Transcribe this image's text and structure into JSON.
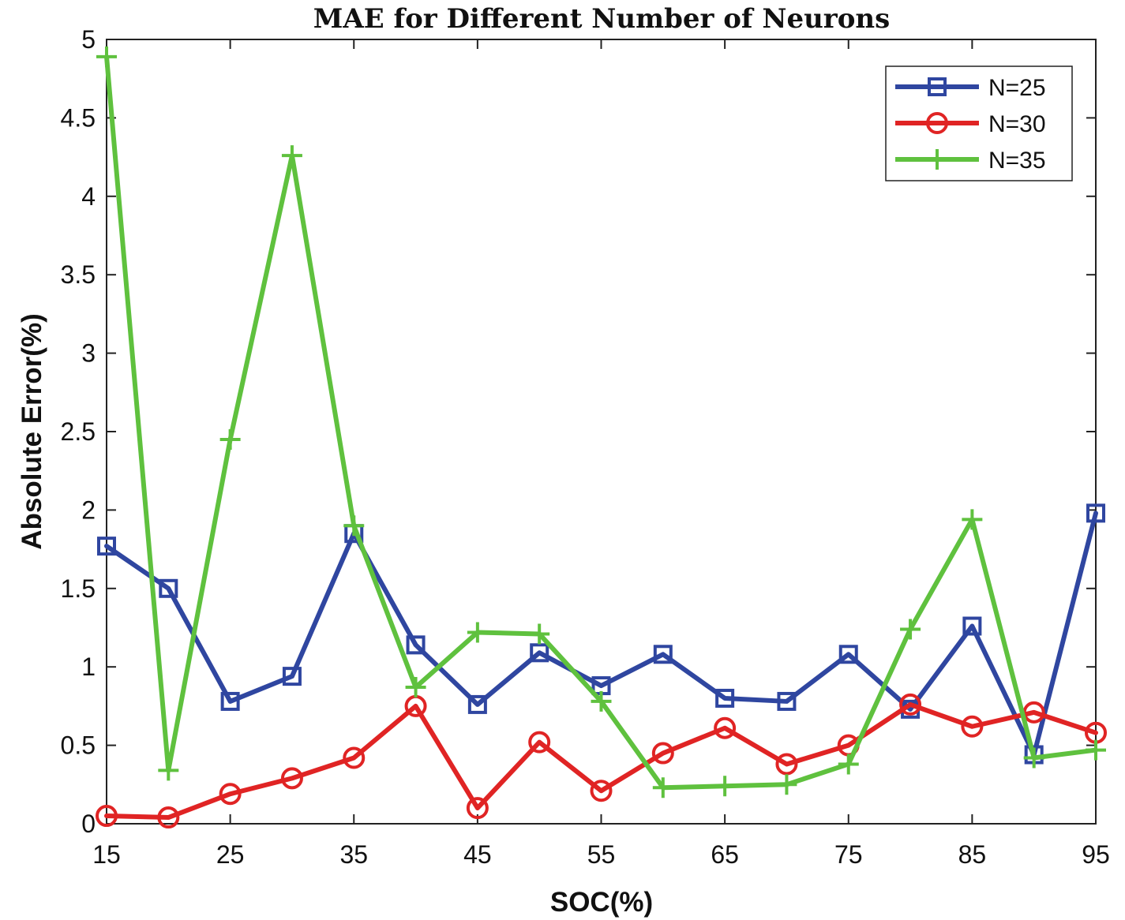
{
  "chart_data": {
    "type": "line",
    "title": "MAE for Different Number of Neurons",
    "xlabel": "SOC(%)",
    "ylabel": "Absolute Error(%)",
    "xlim": [
      15,
      95
    ],
    "ylim": [
      0,
      5
    ],
    "x": [
      15,
      20,
      25,
      30,
      35,
      40,
      45,
      50,
      55,
      60,
      65,
      70,
      75,
      80,
      85,
      90,
      95
    ],
    "x_ticks": [
      "15",
      "25",
      "35",
      "45",
      "55",
      "65",
      "75",
      "85",
      "95"
    ],
    "y_ticks": [
      "0",
      "0.5",
      "1",
      "1.5",
      "2",
      "2.5",
      "3",
      "3.5",
      "4",
      "4.5",
      "5"
    ],
    "grid": false,
    "legend_position": "top-right",
    "series": [
      {
        "name": "N=25",
        "color": "#2f46a0",
        "marker": "square",
        "values": [
          1.77,
          1.5,
          0.78,
          0.94,
          1.85,
          1.14,
          0.76,
          1.09,
          0.88,
          1.08,
          0.8,
          0.78,
          1.08,
          0.73,
          1.26,
          0.44,
          1.98
        ]
      },
      {
        "name": "N=30",
        "color": "#e02424",
        "marker": "circle",
        "values": [
          0.05,
          0.04,
          0.19,
          0.29,
          0.42,
          0.75,
          0.1,
          0.52,
          0.21,
          0.45,
          0.61,
          0.38,
          0.5,
          0.76,
          0.62,
          0.71,
          0.58
        ]
      },
      {
        "name": "N=35",
        "color": "#5fc13e",
        "marker": "plus",
        "values": [
          4.89,
          0.34,
          2.45,
          4.26,
          1.9,
          0.87,
          1.22,
          1.21,
          0.78,
          0.23,
          0.24,
          0.25,
          0.38,
          1.24,
          1.94,
          0.42,
          0.47
        ]
      }
    ]
  }
}
